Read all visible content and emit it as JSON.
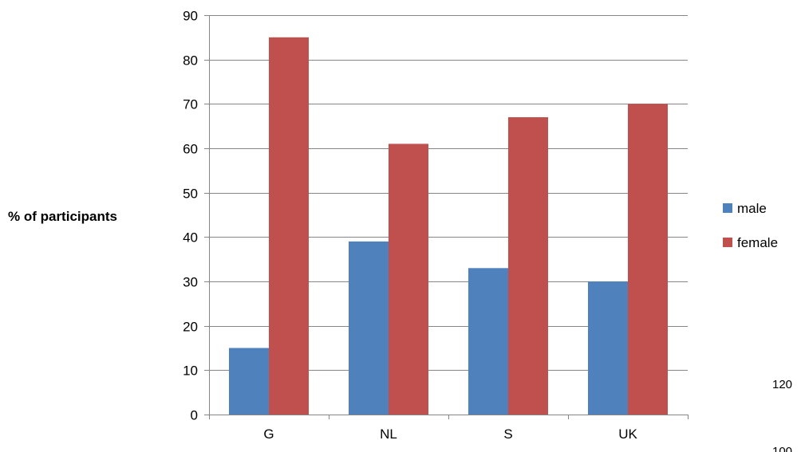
{
  "chart_data": {
    "type": "bar",
    "title": "",
    "xlabel": "",
    "ylabel": "% of participants",
    "categories": [
      "G",
      "NL",
      "S",
      "UK"
    ],
    "series": [
      {
        "name": "male",
        "values": [
          15,
          39,
          33,
          30
        ],
        "color": "#4F81BD"
      },
      {
        "name": "female",
        "values": [
          85,
          61,
          67,
          70
        ],
        "color": "#C0504D"
      }
    ],
    "ylim": [
      0,
      90
    ],
    "yticks": [
      0,
      10,
      20,
      30,
      40,
      50,
      60,
      70,
      80,
      90
    ],
    "grid": true,
    "legend": "right"
  },
  "stray_labels": [
    "120",
    "100"
  ]
}
